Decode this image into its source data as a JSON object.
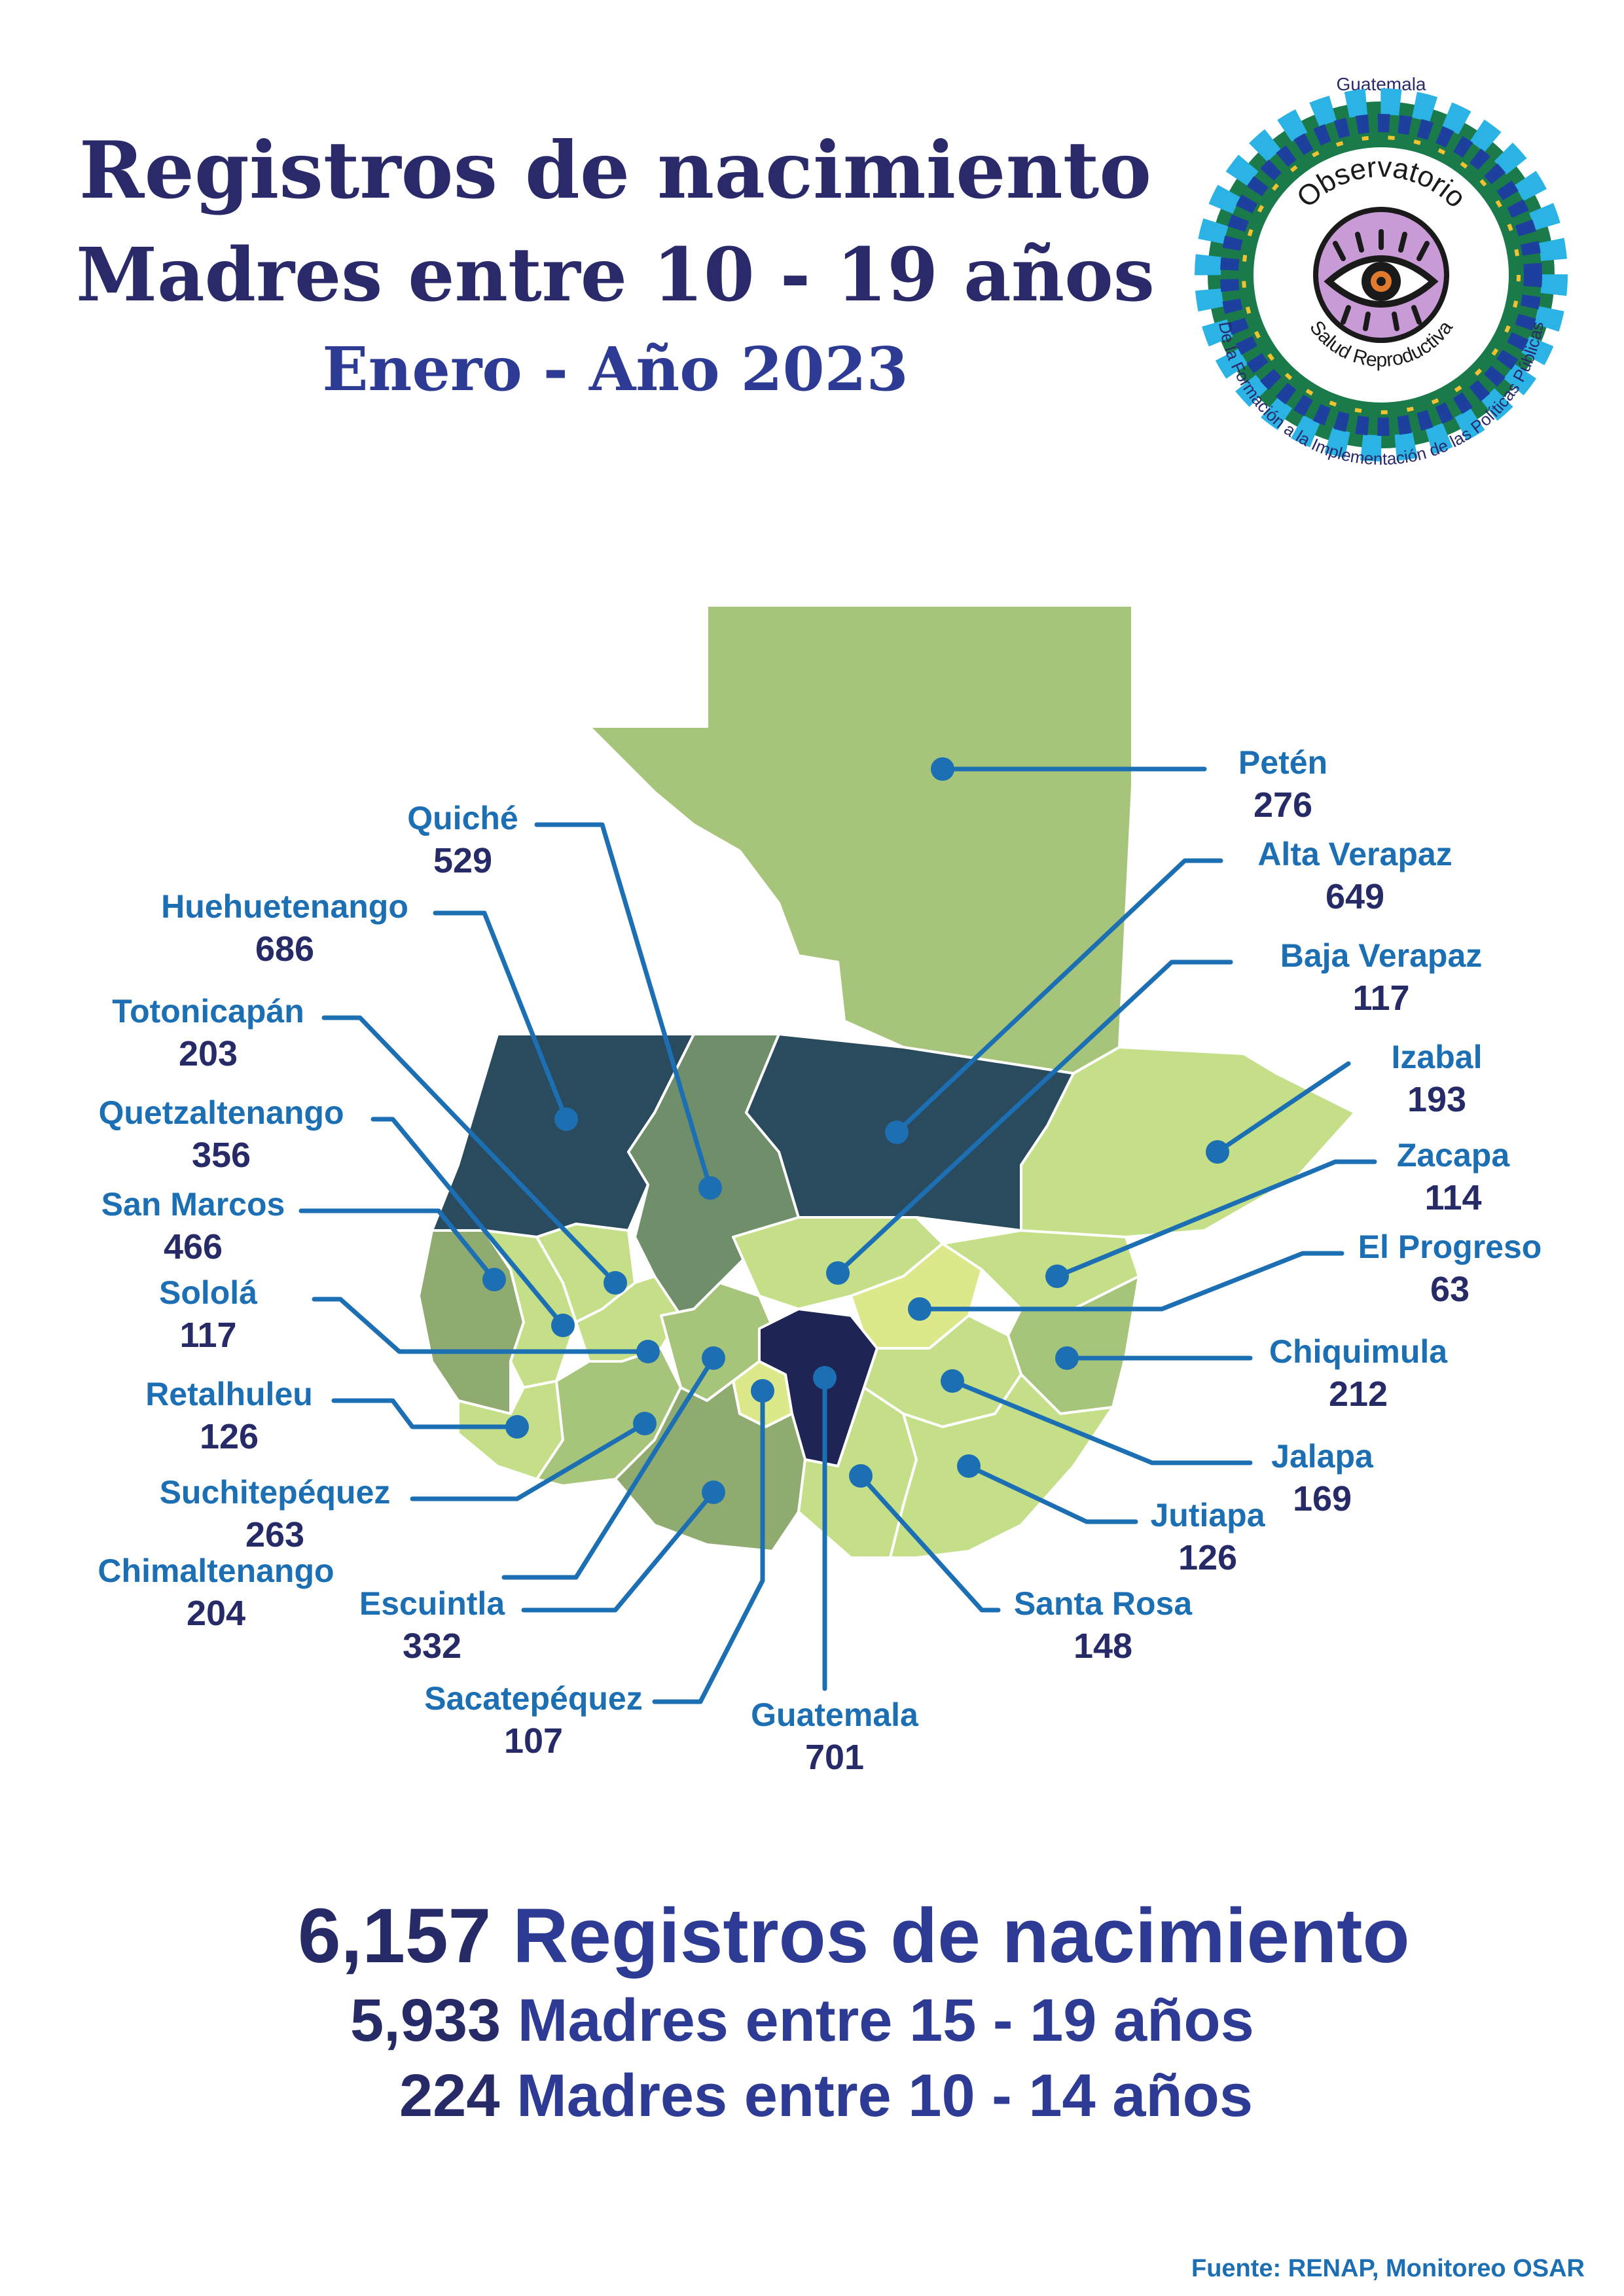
{
  "header": {
    "title_line1": "Registros de nacimiento",
    "title_line2": "Madres entre 10 - 19 años",
    "period": "Enero - Año 2023"
  },
  "logo": {
    "top_text": "Guatemala",
    "name_line1": "Observatorio",
    "name_line2": "Salud Reproductiva",
    "tagline": "De la Formación a la Implementación de las Políticas Públicas",
    "colors": [
      "#1b7a4a",
      "#2bb3e6",
      "#8c4ea1",
      "#f2c230",
      "#1d3f9e"
    ]
  },
  "legend_colors": {
    "darkest": "#1e2454",
    "dark": "#2a4a5e",
    "mid_dark": "#6f8e6a",
    "mid": "#8fab6f",
    "light": "#a7c57a",
    "lighter": "#c4df88",
    "lightest": "#dde88a",
    "line": "#1d6fb3"
  },
  "departments": [
    {
      "name": "Petén",
      "value": "276"
    },
    {
      "name": "Alta Verapaz",
      "value": "649"
    },
    {
      "name": "Baja Verapaz",
      "value": "117"
    },
    {
      "name": "Izabal",
      "value": "193"
    },
    {
      "name": "Zacapa",
      "value": "114"
    },
    {
      "name": "El Progreso",
      "value": "63"
    },
    {
      "name": "Chiquimula",
      "value": "212"
    },
    {
      "name": "Jalapa",
      "value": "169"
    },
    {
      "name": "Jutiapa",
      "value": "126"
    },
    {
      "name": "Santa Rosa",
      "value": "148"
    },
    {
      "name": "Guatemala",
      "value": "701"
    },
    {
      "name": "Sacatepéquez",
      "value": "107"
    },
    {
      "name": "Escuintla",
      "value": "332"
    },
    {
      "name": "Chimaltenango",
      "value": "204"
    },
    {
      "name": "Suchitepéquez",
      "value": "263"
    },
    {
      "name": "Retalhuleu",
      "value": "126"
    },
    {
      "name": "Sololá",
      "value": "117"
    },
    {
      "name": "San Marcos",
      "value": "466"
    },
    {
      "name": "Quetzaltenango",
      "value": "356"
    },
    {
      "name": "Totonicapán",
      "value": "203"
    },
    {
      "name": "Huehuetenango",
      "value": "686"
    },
    {
      "name": "Quiché",
      "value": "529"
    }
  ],
  "totals": {
    "total_value": "6,157",
    "total_label": "Registros de nacimiento",
    "age_15_19_value": "5,933",
    "age_15_19_label": "Madres entre 15 - 19 años",
    "age_10_14_value": "224",
    "age_10_14_label": "Madres entre 10 - 14 años"
  },
  "source": "Fuente: RENAP, Monitoreo OSAR"
}
